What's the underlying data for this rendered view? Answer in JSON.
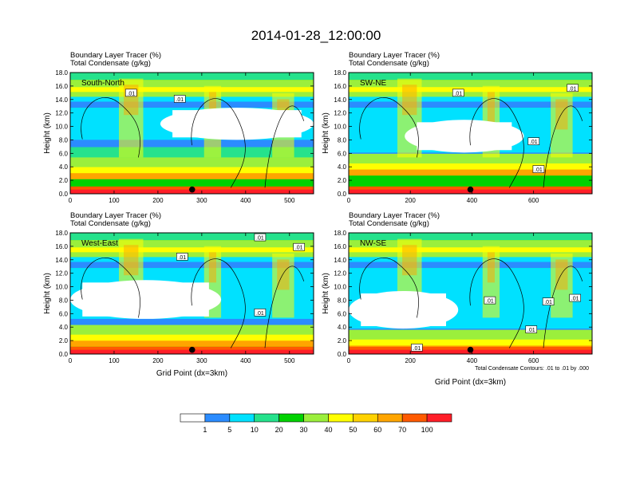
{
  "figure": {
    "title": "2014-01-28_12:00:00",
    "contour_note": "Total Condensate Contours: .01 to .01 by .000"
  },
  "colorbar": {
    "colors": [
      "#ffffff",
      "#2b8cff",
      "#00e1ff",
      "#25e28c",
      "#00d200",
      "#9bef3c",
      "#ffff00",
      "#ffd200",
      "#ffa500",
      "#ff5a00",
      "#ff1e28"
    ],
    "labels": [
      "1",
      "5",
      "10",
      "20",
      "30",
      "40",
      "50",
      "60",
      "70",
      "100"
    ]
  },
  "chart_data": [
    {
      "type": "heatmap",
      "panel_label": "South-North",
      "title_lines": [
        "Boundary Layer Tracer    (%)",
        "Total Condensate    (g/kg)"
      ],
      "ylabel": "Height (km)",
      "xlabel": "",
      "xlim": [
        0,
        555
      ],
      "ylim": [
        0,
        18
      ],
      "xticks": [
        0,
        100,
        200,
        300,
        400,
        500
      ],
      "yticks": [
        "0.0",
        "2.0",
        "4.0",
        "6.0",
        "8.0",
        "10.0",
        "12.0",
        "14.0",
        "16.0",
        "18.0"
      ],
      "contour_labels": [
        ".01",
        ".01"
      ],
      "marker_x": 278
    },
    {
      "type": "heatmap",
      "panel_label": "SW-NE",
      "title_lines": [
        "Boundary Layer Tracer    (%)",
        "Total Condensate    (g/kg)"
      ],
      "ylabel": "Height (km)",
      "xlabel": "",
      "xlim": [
        0,
        790
      ],
      "ylim": [
        0,
        18
      ],
      "xticks": [
        0,
        200,
        400,
        600
      ],
      "yticks": [
        "0.0",
        "2.0",
        "4.0",
        "6.0",
        "8.0",
        "10.0",
        "12.0",
        "14.0",
        "16.0",
        "18.0"
      ],
      "contour_labels": [
        ".01",
        ".01",
        ".01",
        ".01"
      ],
      "marker_x": 395
    },
    {
      "type": "heatmap",
      "panel_label": "West-East",
      "title_lines": [
        "Boundary Layer Tracer    (%)",
        "Total Condensate    (g/kg)"
      ],
      "ylabel": "Height (km)",
      "xlabel": "Grid Point (dx=3km)",
      "xlim": [
        0,
        555
      ],
      "ylim": [
        0,
        18
      ],
      "xticks": [
        0,
        100,
        200,
        300,
        400,
        500
      ],
      "yticks": [
        "0.0",
        "2.0",
        "4.0",
        "6.0",
        "8.0",
        "10.0",
        "12.0",
        "14.0",
        "16.0",
        "18.0"
      ],
      "contour_labels": [
        ".01",
        ".01",
        ".01",
        ".01"
      ],
      "marker_x": 278
    },
    {
      "type": "heatmap",
      "panel_label": "NW-SE",
      "title_lines": [
        "Boundary Layer Tracer    (%)",
        "Total Condensate    (g/kg)"
      ],
      "ylabel": "Height (km)",
      "xlabel": "Grid Point (dx=3km)",
      "xlim": [
        0,
        790
      ],
      "ylim": [
        0,
        18
      ],
      "xticks": [
        0,
        200,
        400,
        600
      ],
      "yticks": [
        "0.0",
        "2.0",
        "4.0",
        "6.0",
        "8.0",
        "10.0",
        "12.0",
        "14.0",
        "16.0",
        "18.0"
      ],
      "contour_labels": [
        ".01",
        ".01",
        ".01",
        ".01",
        ".01"
      ],
      "marker_x": 395
    }
  ]
}
